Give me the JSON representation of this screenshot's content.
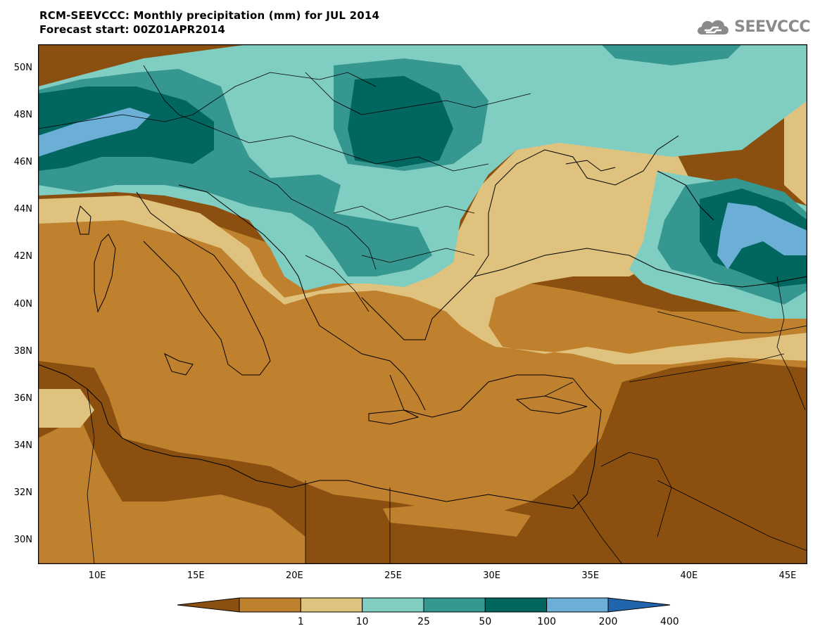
{
  "title": {
    "line1": "RCM-SEEVCCC: Monthly precipitation (mm) for JUL 2014",
    "line2": "Forecast start: 00Z01APR2014"
  },
  "logo": {
    "text": "SEEVCCC",
    "icon": "cloud-icon",
    "color": "#8a8a8a"
  },
  "map": {
    "lon_range": [
      7,
      46
    ],
    "lat_range": [
      29,
      51
    ],
    "lat_ticks": [
      "50N",
      "48N",
      "46N",
      "44N",
      "42N",
      "40N",
      "38N",
      "36N",
      "34N",
      "32N",
      "30N"
    ],
    "lon_ticks": [
      "10E",
      "15E",
      "20E",
      "25E",
      "30E",
      "35E",
      "40E",
      "45E"
    ]
  },
  "colorbar": {
    "colors": [
      "#8b5010",
      "#bf812d",
      "#dfc27d",
      "#80cdc1",
      "#35978f",
      "#01665e",
      "#6baed6",
      "#2166ac"
    ],
    "labels": [
      "1",
      "10",
      "25",
      "50",
      "100",
      "200",
      "400"
    ]
  }
}
